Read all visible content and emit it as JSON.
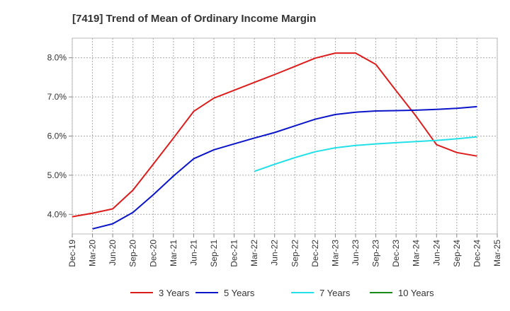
{
  "chart_data": {
    "type": "line",
    "title": "[7419]  Trend of Mean of Ordinary Income Margin",
    "xlabel": "",
    "ylabel": "",
    "x": [
      "Dec-19",
      "Mar-20",
      "Jun-20",
      "Sep-20",
      "Dec-20",
      "Mar-21",
      "Jun-21",
      "Sep-21",
      "Dec-21",
      "Mar-22",
      "Jun-22",
      "Sep-22",
      "Dec-22",
      "Mar-23",
      "Jun-23",
      "Sep-23",
      "Dec-23",
      "Mar-24",
      "Jun-24",
      "Sep-24",
      "Dec-24",
      "Mar-25"
    ],
    "ylim": [
      3.5,
      8.5
    ],
    "yticks": [
      4.0,
      5.0,
      6.0,
      7.0,
      8.0
    ],
    "ytick_labels": [
      "4.0%",
      "5.0%",
      "6.0%",
      "7.0%",
      "8.0%"
    ],
    "grid": true,
    "legend_position": "bottom",
    "series": [
      {
        "name": "3 Years",
        "color": "#dd1c1c",
        "values": [
          3.94,
          4.03,
          4.14,
          4.62,
          5.28,
          5.95,
          6.63,
          6.97,
          7.17,
          7.37,
          7.57,
          7.78,
          7.99,
          8.12,
          8.12,
          7.83,
          7.16,
          6.5,
          5.78,
          5.58,
          5.49,
          null
        ]
      },
      {
        "name": "5 Years",
        "color": "#0a14c8",
        "values": [
          null,
          3.63,
          3.76,
          4.05,
          4.5,
          4.98,
          5.42,
          5.65,
          5.8,
          5.95,
          6.09,
          6.26,
          6.43,
          6.55,
          6.61,
          6.64,
          6.65,
          6.66,
          6.68,
          6.71,
          6.75,
          null
        ]
      },
      {
        "name": "7 Years",
        "color": "#22e0e8",
        "values": [
          null,
          null,
          null,
          null,
          null,
          null,
          null,
          null,
          null,
          5.1,
          5.28,
          5.45,
          5.6,
          5.7,
          5.76,
          5.8,
          5.83,
          5.86,
          5.89,
          5.93,
          5.98,
          null
        ]
      },
      {
        "name": "10 Years",
        "color": "#1a8a1a",
        "values": [
          null,
          null,
          null,
          null,
          null,
          null,
          null,
          null,
          null,
          null,
          null,
          null,
          null,
          null,
          null,
          null,
          null,
          null,
          null,
          null,
          null,
          null
        ]
      }
    ]
  }
}
